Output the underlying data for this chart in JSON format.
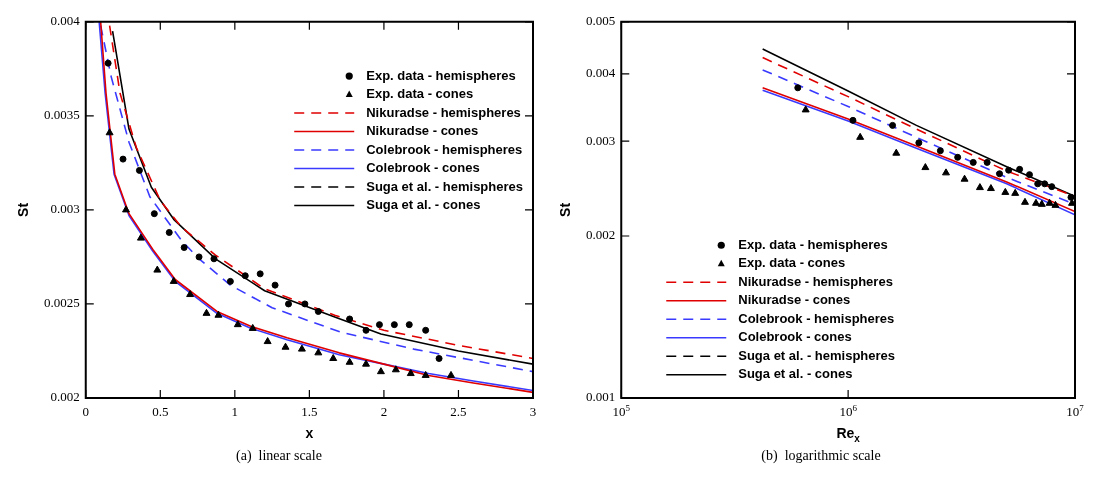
{
  "chart_data": [
    {
      "type": "line",
      "xlabel": "x",
      "ylabel": "St",
      "xlim": [
        0,
        3
      ],
      "xticks": [
        0,
        0.5,
        1,
        1.5,
        2,
        2.5,
        3
      ],
      "ylim": [
        0.002,
        0.004
      ],
      "yticks": [
        0.002,
        0.0025,
        0.003,
        0.0035,
        0.004
      ],
      "legend": "top right",
      "annotations": [
        "(a)  linear scale"
      ],
      "series": [
        {
          "name": "Exp. data - hemispheres",
          "type": "scatter",
          "marker": "circle",
          "color": "#000000",
          "x": [
            0.15,
            0.25,
            0.36,
            0.46,
            0.56,
            0.66,
            0.76,
            0.86,
            0.97,
            1.07,
            1.17,
            1.27,
            1.36,
            1.47,
            1.56,
            1.77,
            1.88,
            1.97,
            2.07,
            2.17,
            2.28,
            2.37
          ],
          "values": [
            0.00378,
            0.00327,
            0.00321,
            0.00298,
            0.00288,
            0.0028,
            0.00275,
            0.00274,
            0.00262,
            0.00265,
            0.00266,
            0.0026,
            0.0025,
            0.0025,
            0.00246,
            0.00242,
            0.00236,
            0.00239,
            0.00239,
            0.00239,
            0.00236,
            0.00221
          ]
        },
        {
          "name": "Exp. data - cones",
          "type": "scatter",
          "marker": "triangle",
          "color": "#000000",
          "x": [
            0.16,
            0.27,
            0.37,
            0.48,
            0.59,
            0.7,
            0.81,
            0.89,
            1.02,
            1.12,
            1.22,
            1.34,
            1.45,
            1.56,
            1.66,
            1.77,
            1.88,
            1.98,
            2.08,
            2.18,
            2.28,
            2.45
          ],
          "values": [
            0.00341,
            0.003,
            0.00285,
            0.00268,
            0.00262,
            0.00255,
            0.00245,
            0.00244,
            0.00239,
            0.00237,
            0.0023,
            0.00227,
            0.00226,
            0.00224,
            0.00221,
            0.00219,
            0.00218,
            0.00214,
            0.00215,
            0.00213,
            0.00212,
            0.00212
          ]
        },
        {
          "name": "Nikuradse - hemispheres",
          "type": "line",
          "line_style": "dashed",
          "color": "#e00000",
          "x": [
            0.16,
            0.23,
            0.34,
            0.5,
            0.64,
            0.87,
            1.2,
            1.67,
            2,
            2.5,
            3
          ],
          "values": [
            0.00398,
            0.00362,
            0.00333,
            0.00305,
            0.00291,
            0.00276,
            0.00258,
            0.00244,
            0.00236,
            0.00228,
            0.00221
          ]
        },
        {
          "name": "Nikuradse - cones",
          "type": "line",
          "line_style": "solid",
          "color": "#e00000",
          "x": [
            0.1,
            0.136,
            0.195,
            0.29,
            0.45,
            0.6,
            0.88,
            1.11,
            1.35,
            1.7,
            2,
            2.3,
            2.6,
            3
          ],
          "values": [
            0.004,
            0.00362,
            0.00319,
            0.00298,
            0.00279,
            0.00263,
            0.00246,
            0.00238,
            0.00232,
            0.00224,
            0.00218,
            0.00212,
            0.00208,
            0.00203
          ]
        },
        {
          "name": "Colebrook - hemispheres",
          "type": "line",
          "line_style": "dashed",
          "color": "#3a3aff",
          "x": [
            0.1,
            0.17,
            0.29,
            0.43,
            0.64,
            0.76,
            0.97,
            1.11,
            1.25,
            1.71,
            2.2,
            2.6,
            3
          ],
          "values": [
            0.00398,
            0.00371,
            0.00336,
            0.00307,
            0.00284,
            0.00274,
            0.0026,
            0.00254,
            0.00248,
            0.00235,
            0.00226,
            0.0022,
            0.00214
          ]
        },
        {
          "name": "Colebrook - cones",
          "type": "line",
          "line_style": "solid",
          "color": "#3a3aff",
          "x": [
            0.09,
            0.13,
            0.19,
            0.29,
            0.45,
            0.6,
            0.88,
            1.11,
            1.35,
            1.7,
            2,
            2.3,
            2.6,
            3
          ],
          "values": [
            0.004,
            0.00362,
            0.00319,
            0.00297,
            0.00278,
            0.00262,
            0.00245,
            0.00237,
            0.00231,
            0.00223,
            0.00218,
            0.00213,
            0.00209,
            0.00204
          ]
        },
        {
          "name": "Suga et al. - hemispheres",
          "type": "line",
          "line_style": "dashed",
          "color": "#000000"
        },
        {
          "name": "Suga et al. - cones",
          "type": "line",
          "line_style": "solid",
          "color": "#000000",
          "x": [
            0.18,
            0.29,
            0.44,
            0.59,
            0.87,
            1.2,
            1.67,
            1.98,
            2.5,
            3
          ],
          "values": [
            0.00395,
            0.00343,
            0.00312,
            0.00295,
            0.00274,
            0.00257,
            0.00243,
            0.00234,
            0.00225,
            0.00218
          ]
        }
      ]
    },
    {
      "type": "line",
      "xlabel": "Re$_{x}$",
      "ylabel": "St",
      "log": "xy",
      "xlim": [
        100000,
        10000000
      ],
      "xticks": [
        {
          "value": 100000,
          "label": "10$^{5}$"
        },
        {
          "value": 1000000,
          "label": "10$^{6}$"
        },
        {
          "value": 10000000,
          "label": "10$^{7}$"
        }
      ],
      "ylim": [
        0.001,
        0.005
      ],
      "yticks": [
        0.001,
        0.002,
        0.003,
        0.004,
        0.005
      ],
      "legend": "bottom left",
      "annotations": [
        "(b)  logarithmic scale"
      ],
      "series": [
        {
          "name": "Exp. data - hemispheres",
          "type": "scatter",
          "marker": "circle",
          "color": "#000000",
          "x": [
            600000,
            1050000,
            1570000,
            2050000,
            2550000,
            3040000,
            3560000,
            4100000,
            4650000,
            5100000,
            5700000,
            6300000,
            6850000,
            7350000,
            7900000,
            9600000
          ],
          "values": [
            0.00377,
            0.00328,
            0.00321,
            0.00298,
            0.00288,
            0.0028,
            0.00274,
            0.00274,
            0.00261,
            0.00265,
            0.00266,
            0.0026,
            0.0025,
            0.0025,
            0.00247,
            0.00236
          ]
        },
        {
          "name": "Exp. data - cones",
          "type": "scatter",
          "marker": "triangle",
          "color": "#000000",
          "x": [
            650000,
            1130000,
            1630000,
            2190000,
            2700000,
            3260000,
            3810000,
            4260000,
            4930000,
            5450000,
            6020000,
            6730000,
            7140000,
            7730000,
            8200000,
            9700000
          ],
          "values": [
            0.00343,
            0.00305,
            0.00285,
            0.00268,
            0.00262,
            0.00255,
            0.00246,
            0.00245,
            0.00241,
            0.0024,
            0.00231,
            0.0023,
            0.00229,
            0.0023,
            0.00228,
            0.0023
          ]
        },
        {
          "name": "Nikuradse - hemispheres",
          "type": "line",
          "line_style": "dashed",
          "color": "#e00000",
          "x": [
            420000,
            1000000,
            2000000,
            5000000,
            10000000
          ],
          "values": [
            0.00429,
            0.00363,
            0.00316,
            0.00264,
            0.00237
          ]
        },
        {
          "name": "Nikuradse - cones",
          "type": "line",
          "line_style": "solid",
          "color": "#e00000",
          "x": [
            420000,
            1000000,
            2000000,
            5000000,
            10000000
          ],
          "values": [
            0.00377,
            0.0033,
            0.00294,
            0.00252,
            0.00222
          ]
        },
        {
          "name": "Colebrook - hemispheres",
          "type": "line",
          "line_style": "dashed",
          "color": "#3a3aff",
          "x": [
            420000,
            1000000,
            2000000,
            5000000,
            10000000
          ],
          "values": [
            0.00407,
            0.00348,
            0.00305,
            0.00257,
            0.00229
          ]
        },
        {
          "name": "Colebrook - cones",
          "type": "line",
          "line_style": "solid",
          "color": "#3a3aff",
          "x": [
            420000,
            1000000,
            2000000,
            5000000,
            10000000
          ],
          "values": [
            0.00373,
            0.00327,
            0.00291,
            0.0025,
            0.00219
          ]
        },
        {
          "name": "Suga et al. - hemispheres",
          "type": "line",
          "line_style": "dashed",
          "color": "#000000"
        },
        {
          "name": "Suga et al. - cones",
          "type": "line",
          "line_style": "solid",
          "color": "#000000",
          "x": [
            420000,
            1000000,
            2000000,
            5000000,
            10000000
          ],
          "values": [
            0.00445,
            0.00372,
            0.00321,
            0.00269,
            0.00237
          ]
        }
      ]
    }
  ]
}
